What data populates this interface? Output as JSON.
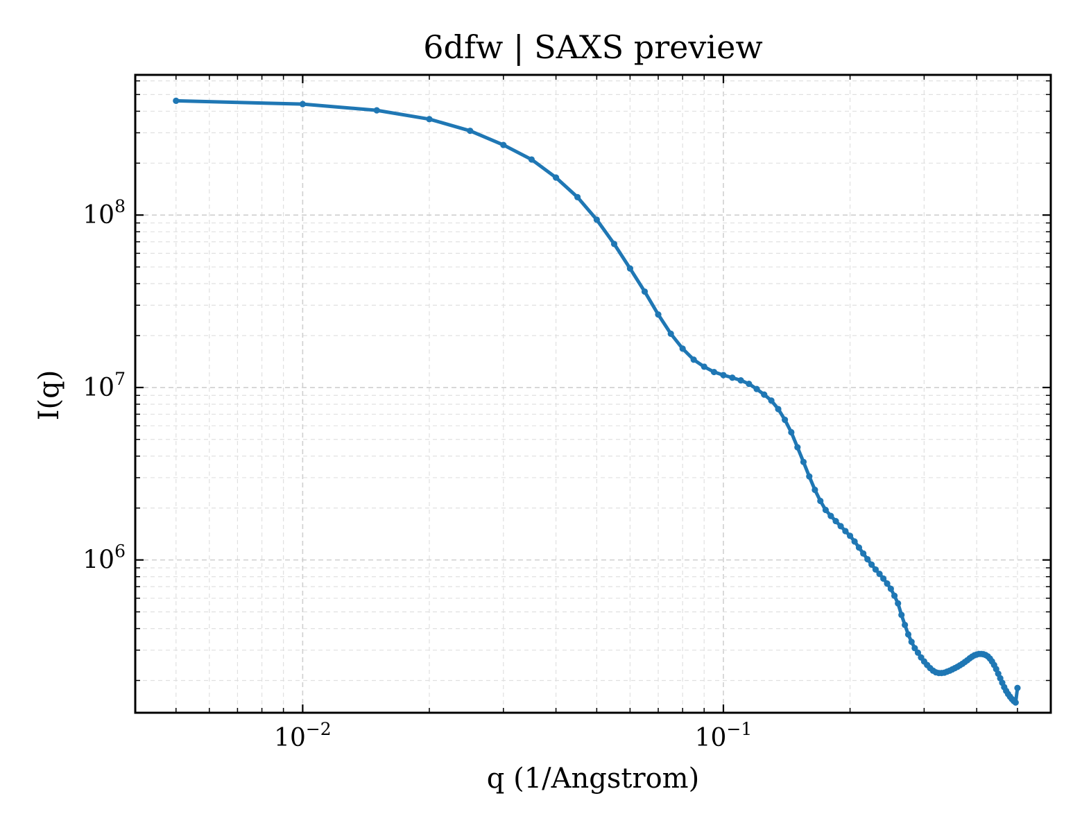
{
  "chart_data": {
    "type": "line",
    "title": "6dfw | SAXS preview",
    "xlabel": "q (1/Angstrom)",
    "ylabel": "I(q)",
    "xscale": "log",
    "yscale": "log",
    "xlim": [
      0.004,
      0.6
    ],
    "ylim": [
      130000,
      650000000
    ],
    "grid": true,
    "marker": "circle",
    "color": "#1f77b4",
    "x_ticks": [
      {
        "base": "10",
        "exp": "−2",
        "value": 0.01
      },
      {
        "base": "10",
        "exp": "−1",
        "value": 0.1
      }
    ],
    "y_ticks": [
      {
        "base": "10",
        "exp": "6",
        "value": 1000000
      },
      {
        "base": "10",
        "exp": "7",
        "value": 10000000
      },
      {
        "base": "10",
        "exp": "8",
        "value": 100000000
      }
    ],
    "series": [
      {
        "x": [
          0.005,
          0.01,
          0.015,
          0.02,
          0.025,
          0.03,
          0.035,
          0.04,
          0.045,
          0.05,
          0.055,
          0.06,
          0.065,
          0.07,
          0.075,
          0.08,
          0.085,
          0.09,
          0.095,
          0.1,
          0.105,
          0.11,
          0.115,
          0.12,
          0.125,
          0.13,
          0.135,
          0.14,
          0.145,
          0.15,
          0.155,
          0.16,
          0.165,
          0.17,
          0.175,
          0.18,
          0.185,
          0.19,
          0.195,
          0.2,
          0.205,
          0.21,
          0.215,
          0.22,
          0.225,
          0.23,
          0.235,
          0.24,
          0.245,
          0.25,
          0.255,
          0.26,
          0.265,
          0.27,
          0.275,
          0.28,
          0.285,
          0.29,
          0.295,
          0.3,
          0.305,
          0.31,
          0.315,
          0.32,
          0.325,
          0.33,
          0.335,
          0.34,
          0.345,
          0.35,
          0.355,
          0.36,
          0.365,
          0.37,
          0.375,
          0.38,
          0.385,
          0.39,
          0.395,
          0.4,
          0.405,
          0.41,
          0.415,
          0.42,
          0.425,
          0.43,
          0.435,
          0.44,
          0.445,
          0.45,
          0.455,
          0.46,
          0.465,
          0.47,
          0.475,
          0.48,
          0.485,
          0.49,
          0.495,
          0.5
        ],
        "y": [
          460000000,
          440000000,
          405000000,
          360000000,
          308000000,
          255000000,
          210000000,
          165000000,
          127000000,
          94000000,
          68000000,
          49000000,
          36000000,
          26500000,
          20500000,
          16800000,
          14500000,
          13200000,
          12300000,
          11800000,
          11400000,
          11000000,
          10500000,
          9800000,
          9100000,
          8400000,
          7500000,
          6500000,
          5500000,
          4500000,
          3700000,
          3050000,
          2550000,
          2200000,
          1950000,
          1800000,
          1680000,
          1570000,
          1470000,
          1380000,
          1280000,
          1180000,
          1090000,
          1010000,
          940000,
          880000,
          830000,
          780000,
          730000,
          680000,
          620000,
          560000,
          480000,
          420000,
          370000,
          335000,
          308000,
          290000,
          272000,
          258000,
          246000,
          236000,
          228000,
          223000,
          221000,
          221000,
          222000,
          225000,
          228000,
          232000,
          236000,
          240000,
          245000,
          250000,
          256000,
          262000,
          269000,
          275000,
          280000,
          283000,
          285000,
          285000,
          284000,
          281000,
          276000,
          268000,
          258000,
          246000,
          233000,
          219000,
          206000,
          194000,
          183000,
          174000,
          167000,
          161000,
          156000,
          152000,
          149000,
          181000
        ]
      }
    ]
  }
}
